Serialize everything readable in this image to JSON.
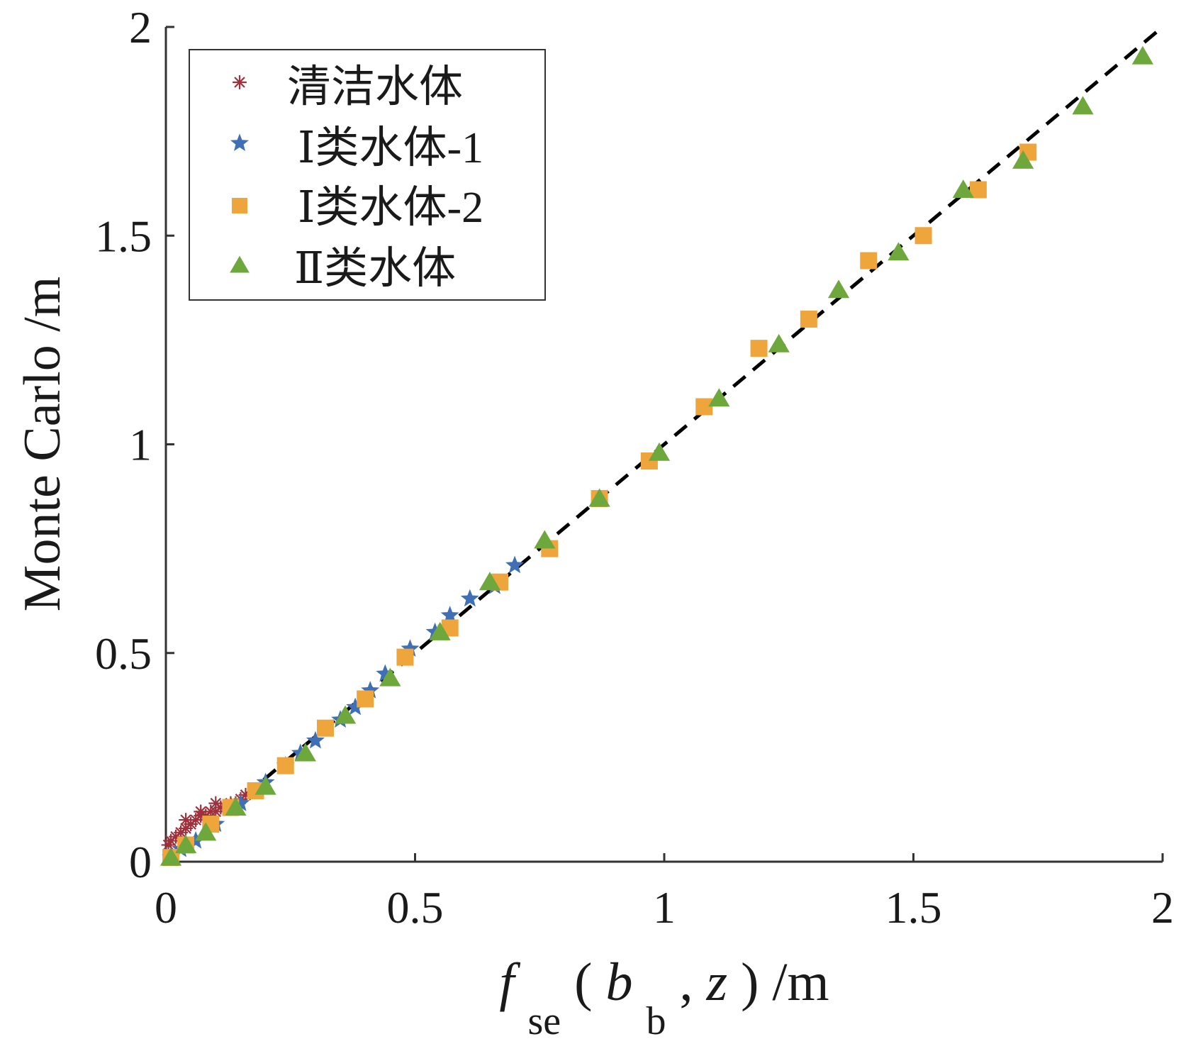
{
  "chart_data": {
    "type": "scatter",
    "title": "",
    "xlabel": {
      "f": "f",
      "sub_se": "se",
      "open": "(",
      "b": "b",
      "sub_b": "b",
      "rest": ", ",
      "z": "z",
      "close": ") /m"
    },
    "ylabel": "Monte Carlo /m",
    "xlim": [
      0,
      2
    ],
    "ylim": [
      0,
      2
    ],
    "xticks": [
      "0",
      "0.5",
      "1",
      "1.5",
      "2"
    ],
    "yticks": [
      "0",
      "0.5",
      "1",
      "1.5",
      "2"
    ],
    "grid": false,
    "legend_position": "top-left",
    "reference_line": {
      "style": "dashed",
      "color": "#000000",
      "x": [
        0,
        2
      ],
      "y": [
        0,
        2
      ]
    },
    "series": [
      {
        "name": "清洁水体",
        "marker": "asterisk",
        "color": "#a0303c",
        "x": [
          0.005,
          0.01,
          0.02,
          0.03,
          0.04,
          0.05,
          0.06,
          0.07,
          0.08,
          0.09,
          0.1,
          0.11,
          0.12,
          0.13,
          0.14,
          0.15,
          0.16,
          0.04,
          0.07,
          0.1
        ],
        "y": [
          0.04,
          0.05,
          0.06,
          0.07,
          0.08,
          0.09,
          0.1,
          0.11,
          0.11,
          0.12,
          0.12,
          0.13,
          0.13,
          0.14,
          0.14,
          0.15,
          0.16,
          0.1,
          0.12,
          0.14
        ]
      },
      {
        "name": "Ⅰ类水体-1",
        "marker": "star",
        "color": "#3f6fb5",
        "x": [
          0.01,
          0.03,
          0.06,
          0.1,
          0.15,
          0.2,
          0.24,
          0.27,
          0.3,
          0.35,
          0.38,
          0.41,
          0.44,
          0.49,
          0.54,
          0.57,
          0.61,
          0.66,
          0.7
        ],
        "y": [
          0.01,
          0.03,
          0.05,
          0.09,
          0.14,
          0.19,
          0.23,
          0.26,
          0.29,
          0.34,
          0.37,
          0.41,
          0.45,
          0.51,
          0.55,
          0.59,
          0.63,
          0.66,
          0.71
        ]
      },
      {
        "name": "Ⅰ类水体-2",
        "marker": "square",
        "color": "#eda53c",
        "x": [
          0.01,
          0.04,
          0.09,
          0.13,
          0.18,
          0.24,
          0.32,
          0.4,
          0.48,
          0.57,
          0.67,
          0.77,
          0.87,
          0.97,
          1.08,
          1.19,
          1.29,
          1.41,
          1.52,
          1.63,
          1.73
        ],
        "y": [
          0.01,
          0.04,
          0.09,
          0.13,
          0.17,
          0.23,
          0.32,
          0.39,
          0.49,
          0.56,
          0.67,
          0.75,
          0.87,
          0.96,
          1.09,
          1.23,
          1.3,
          1.44,
          1.5,
          1.61,
          1.7
        ],
        "note_hidden": ""
      },
      {
        "name": "Ⅱ类水体",
        "marker": "triangle",
        "color": "#6ea83c",
        "x": [
          0.01,
          0.04,
          0.08,
          0.14,
          0.2,
          0.28,
          0.36,
          0.45,
          0.55,
          0.65,
          0.76,
          0.87,
          0.99,
          1.11,
          1.23,
          1.35,
          1.47,
          1.6,
          1.72,
          1.84,
          1.96
        ],
        "y": [
          0.01,
          0.04,
          0.07,
          0.13,
          0.18,
          0.26,
          0.35,
          0.44,
          0.55,
          0.67,
          0.77,
          0.87,
          0.98,
          1.11,
          1.24,
          1.37,
          1.46,
          1.61,
          1.68,
          1.81,
          1.93
        ]
      }
    ]
  }
}
